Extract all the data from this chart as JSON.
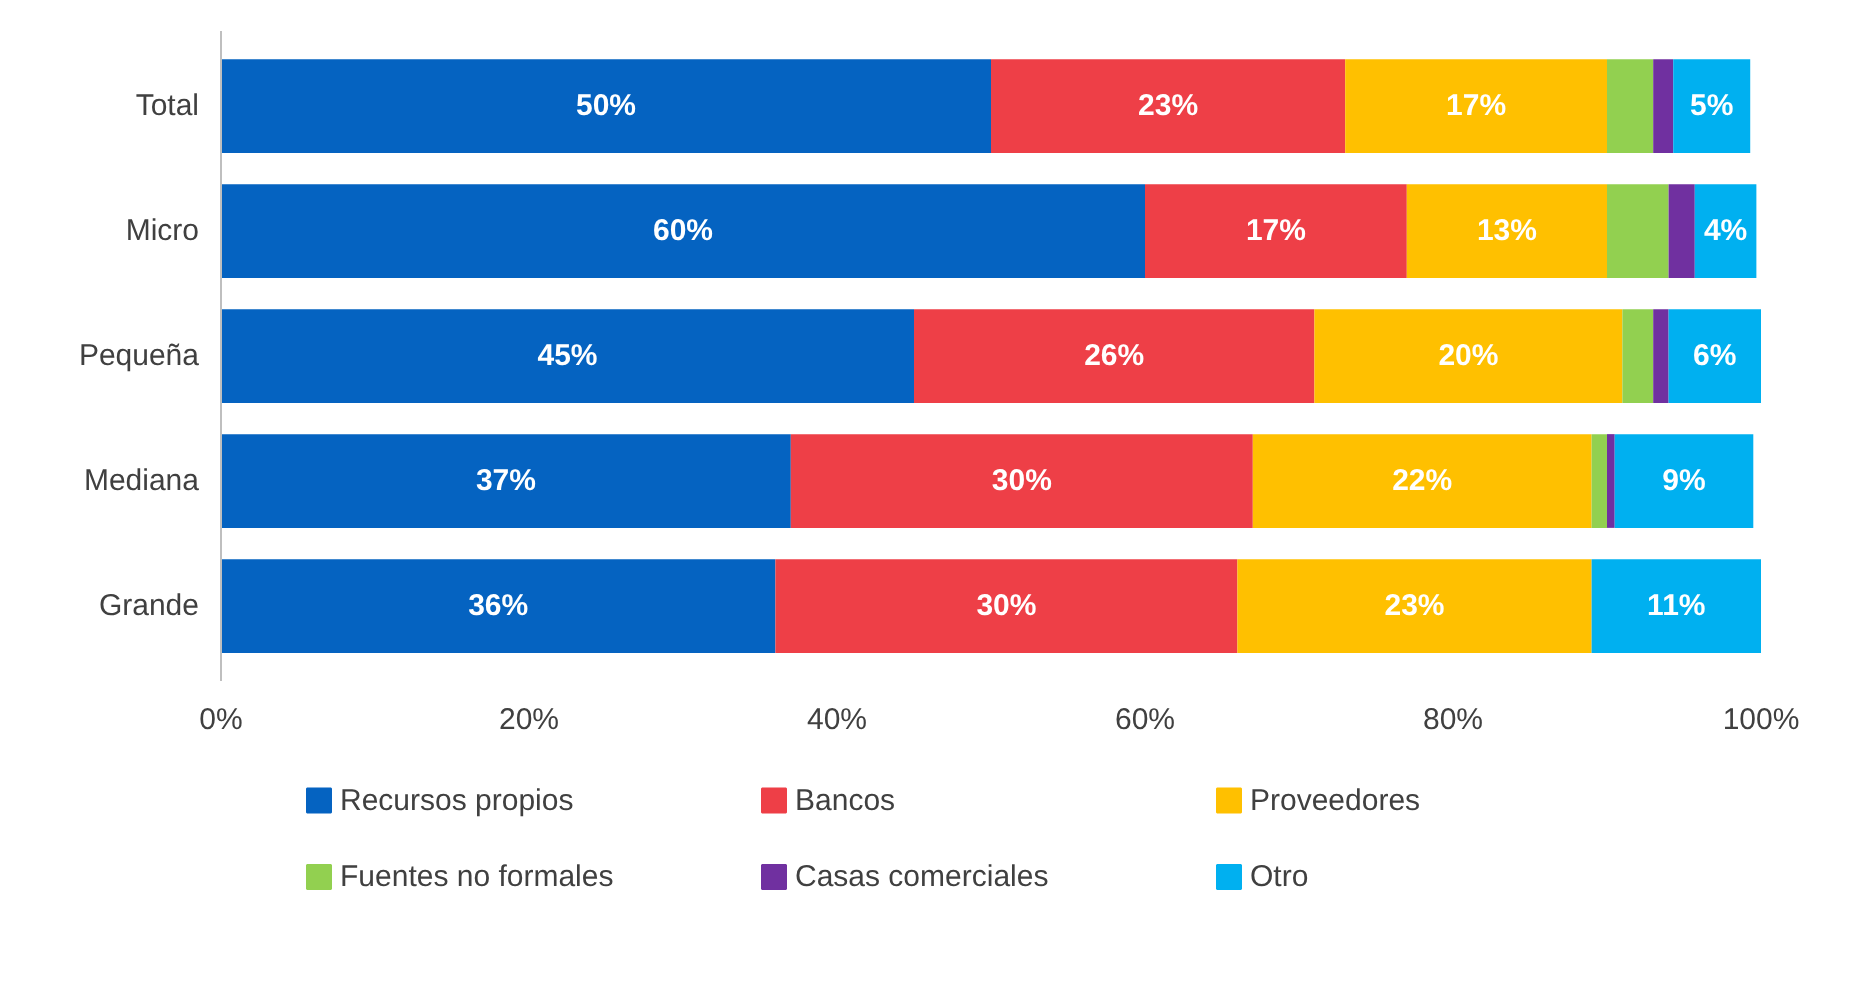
{
  "chart_data": {
    "type": "bar",
    "orientation": "horizontal",
    "stacked": true,
    "categories": [
      "Total",
      "Micro",
      "Pequeña",
      "Mediana",
      "Grande"
    ],
    "series": [
      {
        "name": "Recursos propios",
        "color": "#0563c1",
        "values": [
          50,
          60,
          45,
          37,
          36
        ],
        "value_labels": [
          "50%",
          "60%",
          "45%",
          "37%",
          "36%"
        ]
      },
      {
        "name": "Bancos",
        "color": "#ee3f47",
        "values": [
          23,
          17,
          26,
          30,
          30
        ],
        "value_labels": [
          "23%",
          "17%",
          "26%",
          "30%",
          "30%"
        ]
      },
      {
        "name": "Proveedores",
        "color": "#ffc000",
        "values": [
          17,
          13,
          20,
          22,
          23
        ],
        "value_labels": [
          "17%",
          "13%",
          "20%",
          "22%",
          "23%"
        ]
      },
      {
        "name": "Fuentes no formales",
        "color": "#92d050",
        "values": [
          3,
          4,
          2,
          1,
          0
        ],
        "value_labels": [
          null,
          null,
          null,
          null,
          null
        ]
      },
      {
        "name": "Casas comerciales",
        "color": "#7030a0",
        "values": [
          1.3,
          1.7,
          1,
          0.5,
          0
        ],
        "value_labels": [
          null,
          null,
          null,
          null,
          null
        ]
      },
      {
        "name": "Otro",
        "color": "#00b0f0",
        "values": [
          5,
          4,
          6,
          9,
          11
        ],
        "value_labels": [
          "5%",
          "4%",
          "6%",
          "9%",
          "11%"
        ]
      }
    ],
    "xlim": [
      0,
      100
    ],
    "xticks": [
      {
        "value": 0,
        "label": "0%"
      },
      {
        "value": 20,
        "label": "20%"
      },
      {
        "value": 40,
        "label": "40%"
      },
      {
        "value": 60,
        "label": "60%"
      },
      {
        "value": 80,
        "label": "80%"
      },
      {
        "value": 100,
        "label": "100%"
      }
    ],
    "grid": false,
    "legend": "bottom"
  }
}
